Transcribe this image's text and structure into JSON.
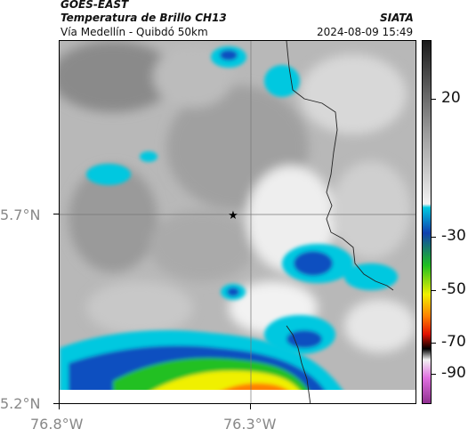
{
  "header": {
    "satellite": "GOES-EAST",
    "product": "Temperatura de Brillo CH13",
    "region": "Vía Medellín - Quibdó 50km",
    "org": "SIATA",
    "timestamp": "2024-08-09 15:49"
  },
  "axes": {
    "lat_labels": [
      "5.7°N",
      "5.2°N"
    ],
    "lon_labels": [
      "76.8°W",
      "76.3°W"
    ]
  },
  "colorbar": {
    "labels": [
      "20",
      "-30",
      "-50",
      "-70",
      "-90"
    ],
    "colors": {
      "warm_top": "#1a1a1a",
      "gray_mid": "#9a9a9a",
      "white": "#f2f2f2",
      "cyan": "#00c8e0",
      "blue": "#1040b0",
      "green": "#20c020",
      "yellow": "#f0f000",
      "orange": "#ff8000",
      "red": "#e01000",
      "black": "#000000",
      "pink": "#e070e0",
      "purple": "#903090"
    }
  },
  "map": {
    "marker": "station-star-icon"
  }
}
